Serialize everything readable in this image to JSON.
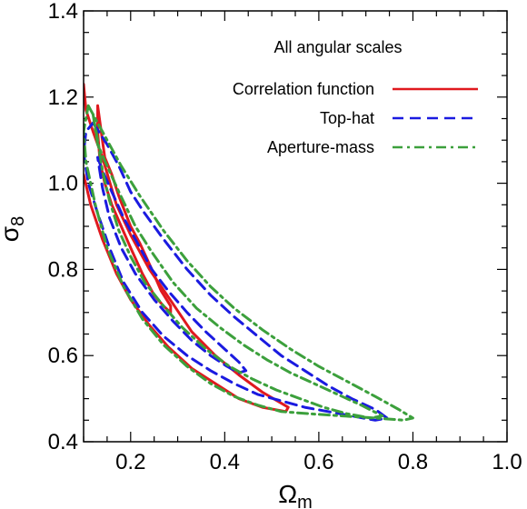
{
  "chart_data": {
    "type": "line",
    "subtype": "contour",
    "title": "",
    "annotation": "All angular scales",
    "xlabel_base": "Ω",
    "xlabel_sub": "m",
    "ylabel_base": "σ",
    "ylabel_sub": "8",
    "xlim": [
      0.1,
      1.0
    ],
    "ylim": [
      0.4,
      1.4
    ],
    "x_ticks": [
      0.2,
      0.4,
      0.6,
      0.8,
      1.0
    ],
    "x_tick_labels": [
      "0.2",
      "0.4",
      "0.6",
      "0.8",
      "1.0"
    ],
    "y_ticks": [
      0.4,
      0.6,
      0.8,
      1.0,
      1.2,
      1.4
    ],
    "y_tick_labels": [
      "0.4",
      "0.6",
      "0.8",
      "1.0",
      "1.2",
      "1.4"
    ],
    "grid": false,
    "legend_position": "top-right",
    "series": [
      {
        "name": "Correlation function",
        "color": "#e0191e",
        "dash": "solid",
        "contours": [
          [
            [
              0.13,
              1.18
            ],
            [
              0.145,
              1.06
            ],
            [
              0.16,
              1.02
            ],
            [
              0.175,
              0.97
            ],
            [
              0.2,
              0.9
            ],
            [
              0.22,
              0.86
            ],
            [
              0.245,
              0.8
            ],
            [
              0.265,
              0.75
            ],
            [
              0.285,
              0.715
            ],
            [
              0.285,
              0.7
            ],
            [
              0.27,
              0.715
            ],
            [
              0.25,
              0.74
            ],
            [
              0.225,
              0.79
            ],
            [
              0.2,
              0.85
            ],
            [
              0.18,
              0.9
            ],
            [
              0.16,
              0.95
            ],
            [
              0.145,
              1.0
            ],
            [
              0.135,
              1.05
            ],
            [
              0.13,
              1.12
            ],
            [
              0.13,
              1.18
            ]
          ],
          [
            [
              0.1,
              1.23
            ],
            [
              0.105,
              1.17
            ],
            [
              0.12,
              1.12
            ],
            [
              0.14,
              1.06
            ],
            [
              0.17,
              0.95
            ],
            [
              0.2,
              0.88
            ],
            [
              0.24,
              0.8
            ],
            [
              0.29,
              0.72
            ],
            [
              0.33,
              0.655
            ],
            [
              0.38,
              0.6
            ],
            [
              0.43,
              0.555
            ],
            [
              0.48,
              0.515
            ],
            [
              0.535,
              0.48
            ],
            [
              0.53,
              0.47
            ],
            [
              0.48,
              0.48
            ],
            [
              0.43,
              0.5
            ],
            [
              0.38,
              0.535
            ],
            [
              0.33,
              0.57
            ],
            [
              0.28,
              0.62
            ],
            [
              0.24,
              0.67
            ],
            [
              0.2,
              0.73
            ],
            [
              0.17,
              0.79
            ],
            [
              0.14,
              0.87
            ],
            [
              0.115,
              0.95
            ],
            [
              0.1,
              1.02
            ]
          ]
        ]
      },
      {
        "name": "Top-hat",
        "color": "#1a1ae0",
        "dash": "dashed",
        "contours": [
          [
            [
              0.13,
              1.06
            ],
            [
              0.14,
              1.03
            ],
            [
              0.16,
              0.98
            ],
            [
              0.185,
              0.92
            ],
            [
              0.21,
              0.87
            ],
            [
              0.245,
              0.8
            ],
            [
              0.28,
              0.75
            ],
            [
              0.32,
              0.7
            ],
            [
              0.36,
              0.655
            ],
            [
              0.4,
              0.615
            ],
            [
              0.43,
              0.585
            ],
            [
              0.445,
              0.565
            ],
            [
              0.43,
              0.56
            ],
            [
              0.405,
              0.575
            ],
            [
              0.37,
              0.6
            ],
            [
              0.33,
              0.635
            ],
            [
              0.29,
              0.68
            ],
            [
              0.25,
              0.73
            ],
            [
              0.21,
              0.79
            ],
            [
              0.18,
              0.85
            ],
            [
              0.155,
              0.92
            ],
            [
              0.14,
              0.99
            ],
            [
              0.13,
              1.06
            ]
          ],
          [
            [
              0.12,
              1.14
            ],
            [
              0.15,
              1.09
            ],
            [
              0.175,
              1.04
            ],
            [
              0.2,
              0.98
            ],
            [
              0.23,
              0.93
            ],
            [
              0.27,
              0.87
            ],
            [
              0.32,
              0.8
            ],
            [
              0.37,
              0.74
            ],
            [
              0.42,
              0.69
            ],
            [
              0.47,
              0.645
            ],
            [
              0.52,
              0.6
            ],
            [
              0.57,
              0.565
            ],
            [
              0.62,
              0.53
            ],
            [
              0.67,
              0.5
            ],
            [
              0.72,
              0.475
            ],
            [
              0.745,
              0.455
            ],
            [
              0.72,
              0.45
            ],
            [
              0.67,
              0.46
            ],
            [
              0.62,
              0.47
            ],
            [
              0.57,
              0.48
            ],
            [
              0.52,
              0.495
            ],
            [
              0.47,
              0.51
            ],
            [
              0.42,
              0.535
            ],
            [
              0.37,
              0.565
            ],
            [
              0.32,
              0.6
            ],
            [
              0.27,
              0.645
            ],
            [
              0.225,
              0.7
            ],
            [
              0.185,
              0.77
            ],
            [
              0.155,
              0.85
            ],
            [
              0.13,
              0.93
            ],
            [
              0.11,
              1.0
            ],
            [
              0.1,
              1.07
            ],
            [
              0.105,
              1.12
            ],
            [
              0.12,
              1.14
            ]
          ]
        ]
      },
      {
        "name": "Aperture-mass",
        "color": "#3ca03c",
        "dash": "dashdot",
        "contours": [
          [
            [
              0.12,
              1.16
            ],
            [
              0.13,
              1.09
            ],
            [
              0.15,
              1.04
            ],
            [
              0.175,
              0.98
            ],
            [
              0.21,
              0.9
            ],
            [
              0.245,
              0.84
            ],
            [
              0.29,
              0.77
            ],
            [
              0.34,
              0.71
            ],
            [
              0.39,
              0.665
            ],
            [
              0.44,
              0.625
            ],
            [
              0.49,
              0.59
            ],
            [
              0.54,
              0.56
            ],
            [
              0.59,
              0.535
            ],
            [
              0.64,
              0.51
            ],
            [
              0.69,
              0.485
            ],
            [
              0.735,
              0.46
            ],
            [
              0.71,
              0.455
            ],
            [
              0.66,
              0.465
            ],
            [
              0.61,
              0.48
            ],
            [
              0.56,
              0.5
            ],
            [
              0.51,
              0.52
            ],
            [
              0.46,
              0.545
            ],
            [
              0.41,
              0.575
            ],
            [
              0.36,
              0.615
            ],
            [
              0.31,
              0.665
            ],
            [
              0.27,
              0.715
            ],
            [
              0.23,
              0.77
            ],
            [
              0.2,
              0.83
            ],
            [
              0.175,
              0.89
            ],
            [
              0.155,
              0.96
            ],
            [
              0.14,
              1.03
            ],
            [
              0.13,
              1.1
            ],
            [
              0.12,
              1.16
            ]
          ],
          [
            [
              0.11,
              1.18
            ],
            [
              0.125,
              1.15
            ],
            [
              0.15,
              1.1
            ],
            [
              0.18,
              1.04
            ],
            [
              0.22,
              0.97
            ],
            [
              0.27,
              0.89
            ],
            [
              0.32,
              0.82
            ],
            [
              0.37,
              0.76
            ],
            [
              0.42,
              0.71
            ],
            [
              0.48,
              0.66
            ],
            [
              0.54,
              0.615
            ],
            [
              0.6,
              0.575
            ],
            [
              0.66,
              0.54
            ],
            [
              0.72,
              0.505
            ],
            [
              0.77,
              0.475
            ],
            [
              0.8,
              0.455
            ],
            [
              0.78,
              0.45
            ],
            [
              0.72,
              0.455
            ],
            [
              0.65,
              0.46
            ],
            [
              0.58,
              0.465
            ],
            [
              0.52,
              0.47
            ],
            [
              0.47,
              0.485
            ],
            [
              0.42,
              0.505
            ],
            [
              0.37,
              0.535
            ],
            [
              0.32,
              0.575
            ],
            [
              0.27,
              0.625
            ],
            [
              0.225,
              0.685
            ],
            [
              0.185,
              0.76
            ],
            [
              0.15,
              0.85
            ],
            [
              0.125,
              0.95
            ],
            [
              0.105,
              1.05
            ],
            [
              0.1,
              1.12
            ],
            [
              0.11,
              1.18
            ]
          ]
        ]
      }
    ]
  }
}
